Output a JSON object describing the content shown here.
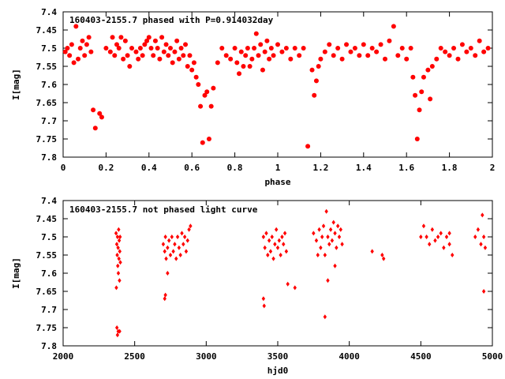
{
  "chart_data": [
    {
      "type": "scatter",
      "title": "160403-2155.7 phased with P=0.914032day",
      "xlabel": "phase",
      "ylabel": "I[mag]",
      "xlim": [
        0,
        2
      ],
      "ylim": [
        7.8,
        7.4
      ],
      "y_inverted": true,
      "grid": false,
      "marker_color": "#ff0000",
      "marker": "filled-circle",
      "x_ticks": [
        "0",
        "0.2",
        "0.4",
        "0.6",
        "0.8",
        "1",
        "1.2",
        "1.4",
        "1.6",
        "1.8",
        "2"
      ],
      "y_ticks": [
        "7.4",
        "7.45",
        "7.5",
        "7.55",
        "7.6",
        "7.65",
        "7.7",
        "7.75",
        "7.8"
      ],
      "series": [
        {
          "points": [
            [
              0.01,
              7.51
            ],
            [
              0.02,
              7.5
            ],
            [
              0.03,
              7.52
            ],
            [
              0.04,
              7.49
            ],
            [
              0.05,
              7.54
            ],
            [
              0.06,
              7.44
            ],
            [
              0.07,
              7.53
            ],
            [
              0.08,
              7.5
            ],
            [
              0.09,
              7.48
            ],
            [
              0.1,
              7.52
            ],
            [
              0.11,
              7.49
            ],
            [
              0.12,
              7.47
            ],
            [
              0.13,
              7.51
            ],
            [
              0.14,
              7.67
            ],
            [
              0.15,
              7.72
            ],
            [
              0.17,
              7.68
            ],
            [
              0.18,
              7.69
            ],
            [
              0.2,
              7.5
            ],
            [
              0.22,
              7.51
            ],
            [
              0.23,
              7.47
            ],
            [
              0.24,
              7.52
            ],
            [
              0.25,
              7.49
            ],
            [
              0.26,
              7.5
            ],
            [
              0.27,
              7.47
            ],
            [
              0.28,
              7.53
            ],
            [
              0.29,
              7.48
            ],
            [
              0.3,
              7.52
            ],
            [
              0.31,
              7.55
            ],
            [
              0.32,
              7.5
            ],
            [
              0.34,
              7.51
            ],
            [
              0.35,
              7.53
            ],
            [
              0.36,
              7.5
            ],
            [
              0.37,
              7.52
            ],
            [
              0.38,
              7.49
            ],
            [
              0.39,
              7.48
            ],
            [
              0.4,
              7.47
            ],
            [
              0.41,
              7.5
            ],
            [
              0.42,
              7.52
            ],
            [
              0.43,
              7.48
            ],
            [
              0.44,
              7.5
            ],
            [
              0.45,
              7.53
            ],
            [
              0.46,
              7.47
            ],
            [
              0.47,
              7.51
            ],
            [
              0.48,
              7.49
            ],
            [
              0.49,
              7.52
            ],
            [
              0.5,
              7.5
            ],
            [
              0.51,
              7.54
            ],
            [
              0.52,
              7.51
            ],
            [
              0.53,
              7.48
            ],
            [
              0.54,
              7.53
            ],
            [
              0.55,
              7.5
            ],
            [
              0.56,
              7.52
            ],
            [
              0.57,
              7.49
            ],
            [
              0.58,
              7.55
            ],
            [
              0.59,
              7.52
            ],
            [
              0.6,
              7.56
            ],
            [
              0.61,
              7.54
            ],
            [
              0.62,
              7.58
            ],
            [
              0.63,
              7.6
            ],
            [
              0.64,
              7.66
            ],
            [
              0.65,
              7.76
            ],
            [
              0.66,
              7.63
            ],
            [
              0.67,
              7.62
            ],
            [
              0.68,
              7.75
            ],
            [
              0.69,
              7.66
            ],
            [
              0.7,
              7.61
            ],
            [
              0.72,
              7.54
            ],
            [
              0.74,
              7.5
            ],
            [
              0.76,
              7.52
            ],
            [
              0.78,
              7.53
            ],
            [
              0.8,
              7.5
            ],
            [
              0.81,
              7.54
            ],
            [
              0.82,
              7.57
            ],
            [
              0.83,
              7.51
            ],
            [
              0.84,
              7.55
            ],
            [
              0.85,
              7.52
            ],
            [
              0.86,
              7.5
            ],
            [
              0.87,
              7.55
            ],
            [
              0.88,
              7.53
            ],
            [
              0.89,
              7.5
            ],
            [
              0.9,
              7.46
            ],
            [
              0.91,
              7.52
            ],
            [
              0.92,
              7.49
            ],
            [
              0.93,
              7.56
            ],
            [
              0.94,
              7.51
            ],
            [
              0.95,
              7.48
            ],
            [
              0.96,
              7.53
            ],
            [
              0.97,
              7.5
            ],
            [
              0.98,
              7.52
            ],
            [
              1.0,
              7.49
            ],
            [
              1.02,
              7.51
            ],
            [
              1.04,
              7.5
            ],
            [
              1.06,
              7.53
            ],
            [
              1.08,
              7.5
            ],
            [
              1.1,
              7.52
            ],
            [
              1.12,
              7.5
            ],
            [
              1.14,
              7.77
            ],
            [
              1.16,
              7.56
            ],
            [
              1.17,
              7.63
            ],
            [
              1.18,
              7.59
            ],
            [
              1.19,
              7.55
            ],
            [
              1.2,
              7.53
            ],
            [
              1.22,
              7.51
            ],
            [
              1.24,
              7.49
            ],
            [
              1.26,
              7.52
            ],
            [
              1.28,
              7.5
            ],
            [
              1.3,
              7.53
            ],
            [
              1.32,
              7.49
            ],
            [
              1.34,
              7.51
            ],
            [
              1.36,
              7.5
            ],
            [
              1.38,
              7.52
            ],
            [
              1.4,
              7.49
            ],
            [
              1.42,
              7.52
            ],
            [
              1.44,
              7.5
            ],
            [
              1.46,
              7.51
            ],
            [
              1.48,
              7.49
            ],
            [
              1.5,
              7.53
            ],
            [
              1.52,
              7.48
            ],
            [
              1.54,
              7.44
            ],
            [
              1.56,
              7.52
            ],
            [
              1.58,
              7.5
            ],
            [
              1.6,
              7.53
            ],
            [
              1.62,
              7.5
            ],
            [
              1.63,
              7.58
            ],
            [
              1.64,
              7.63
            ],
            [
              1.65,
              7.75
            ],
            [
              1.66,
              7.67
            ],
            [
              1.67,
              7.62
            ],
            [
              1.68,
              7.58
            ],
            [
              1.7,
              7.56
            ],
            [
              1.71,
              7.64
            ],
            [
              1.72,
              7.55
            ],
            [
              1.74,
              7.53
            ],
            [
              1.76,
              7.5
            ],
            [
              1.78,
              7.51
            ],
            [
              1.8,
              7.52
            ],
            [
              1.82,
              7.5
            ],
            [
              1.84,
              7.53
            ],
            [
              1.86,
              7.49
            ],
            [
              1.88,
              7.51
            ],
            [
              1.9,
              7.5
            ],
            [
              1.92,
              7.52
            ],
            [
              1.94,
              7.48
            ],
            [
              1.96,
              7.51
            ],
            [
              1.98,
              7.5
            ]
          ]
        }
      ]
    },
    {
      "type": "scatter",
      "title": "160403-2155.7 not phased light curve",
      "xlabel": "hjd0",
      "ylabel": "I[mag]",
      "xlim": [
        2000,
        5000
      ],
      "ylim": [
        7.8,
        7.4
      ],
      "y_inverted": true,
      "grid": false,
      "marker_color": "#ff0000",
      "marker": "filled-diamond",
      "x_ticks": [
        "2000",
        "2500",
        "3000",
        "3500",
        "4000",
        "4500",
        "5000"
      ],
      "y_ticks": [
        "7.4",
        "7.45",
        "7.5",
        "7.55",
        "7.6",
        "7.65",
        "7.7",
        "7.75",
        "7.8"
      ],
      "series": [
        {
          "points": [
            [
              2370,
              7.49
            ],
            [
              2375,
              7.52
            ],
            [
              2378,
              7.55
            ],
            [
              2380,
              7.5
            ],
            [
              2382,
              7.58
            ],
            [
              2384,
              7.53
            ],
            [
              2386,
              7.6
            ],
            [
              2388,
              7.48
            ],
            [
              2390,
              7.56
            ],
            [
              2392,
              7.51
            ],
            [
              2394,
              7.62
            ],
            [
              2396,
              7.54
            ],
            [
              2398,
              7.5
            ],
            [
              2400,
              7.57
            ],
            [
              2372,
              7.64
            ],
            [
              2376,
              7.75
            ],
            [
              2380,
              7.77
            ],
            [
              2385,
              7.76
            ],
            [
              2395,
              7.76
            ],
            [
              2700,
              7.52
            ],
            [
              2710,
              7.54
            ],
            [
              2715,
              7.5
            ],
            [
              2720,
              7.56
            ],
            [
              2730,
              7.53
            ],
            [
              2740,
              7.51
            ],
            [
              2750,
              7.55
            ],
            [
              2760,
              7.5
            ],
            [
              2770,
              7.54
            ],
            [
              2780,
              7.52
            ],
            [
              2790,
              7.56
            ],
            [
              2800,
              7.5
            ],
            [
              2810,
              7.53
            ],
            [
              2820,
              7.55
            ],
            [
              2830,
              7.49
            ],
            [
              2840,
              7.52
            ],
            [
              2850,
              7.5
            ],
            [
              2860,
              7.54
            ],
            [
              2870,
              7.51
            ],
            [
              2880,
              7.48
            ],
            [
              2890,
              7.47
            ],
            [
              2710,
              7.67
            ],
            [
              2715,
              7.66
            ],
            [
              2730,
              7.6
            ],
            [
              3400,
              7.5
            ],
            [
              3410,
              7.53
            ],
            [
              3420,
              7.49
            ],
            [
              3430,
              7.55
            ],
            [
              3440,
              7.51
            ],
            [
              3450,
              7.54
            ],
            [
              3460,
              7.5
            ],
            [
              3470,
              7.56
            ],
            [
              3480,
              7.52
            ],
            [
              3490,
              7.48
            ],
            [
              3500,
              7.53
            ],
            [
              3510,
              7.51
            ],
            [
              3520,
              7.55
            ],
            [
              3530,
              7.5
            ],
            [
              3540,
              7.52
            ],
            [
              3550,
              7.49
            ],
            [
              3560,
              7.54
            ],
            [
              3400,
              7.67
            ],
            [
              3405,
              7.69
            ],
            [
              3570,
              7.63
            ],
            [
              3620,
              7.64
            ],
            [
              3750,
              7.49
            ],
            [
              3770,
              7.51
            ],
            [
              3790,
              7.48
            ],
            [
              3800,
              7.53
            ],
            [
              3810,
              7.5
            ],
            [
              3820,
              7.47
            ],
            [
              3830,
              7.55
            ],
            [
              3840,
              7.43
            ],
            [
              3850,
              7.5
            ],
            [
              3860,
              7.52
            ],
            [
              3870,
              7.48
            ],
            [
              3880,
              7.51
            ],
            [
              3890,
              7.46
            ],
            [
              3900,
              7.49
            ],
            [
              3910,
              7.53
            ],
            [
              3920,
              7.47
            ],
            [
              3930,
              7.5
            ],
            [
              3940,
              7.48
            ],
            [
              3950,
              7.52
            ],
            [
              3830,
              7.72
            ],
            [
              3850,
              7.62
            ],
            [
              3900,
              7.58
            ],
            [
              3780,
              7.55
            ],
            [
              4160,
              7.54
            ],
            [
              4230,
              7.55
            ],
            [
              4240,
              7.56
            ],
            [
              4500,
              7.5
            ],
            [
              4520,
              7.47
            ],
            [
              4540,
              7.5
            ],
            [
              4560,
              7.52
            ],
            [
              4580,
              7.48
            ],
            [
              4600,
              7.51
            ],
            [
              4620,
              7.5
            ],
            [
              4640,
              7.49
            ],
            [
              4660,
              7.53
            ],
            [
              4680,
              7.5
            ],
            [
              4700,
              7.52
            ],
            [
              4720,
              7.55
            ],
            [
              4700,
              7.49
            ],
            [
              4880,
              7.5
            ],
            [
              4900,
              7.48
            ],
            [
              4920,
              7.52
            ],
            [
              4940,
              7.5
            ],
            [
              4950,
              7.53
            ],
            [
              4930,
              7.44
            ],
            [
              4940,
              7.65
            ]
          ]
        }
      ]
    }
  ]
}
